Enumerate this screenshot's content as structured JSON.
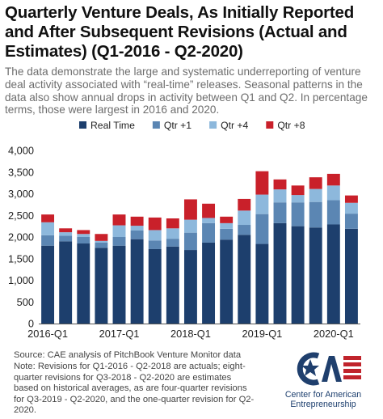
{
  "title": "Quarterly Venture Deals, As Initially Reported and After Subsequent Revisions (Actual and Estimates) (Q1-2016 - Q2-2020)",
  "subtitle": "The data demonstrate the large and systematic underreporting of venture deal activity associated with “real-time” releases. Seasonal patterns in the data also show annual drops in activity between Q1 and Q2. In percentage terms, those were largest in 2016 and 2020.",
  "source": "Source: CAE analysis of PitchBook Venture Monitor data",
  "note": "Note: Revisions for Q1-2016 - Q2-2018 are actuals; eight-quarter revisions for Q3-2018 - Q2-2020 are estimates based on historical averages, as are four-quarter revisions for Q3-2019 - Q2-2020, and the one-quarter revision for Q2-2020.",
  "logo": {
    "mark": "CAE",
    "line1": "Center for American",
    "line2": "Entrepreneurship",
    "colors": {
      "blue": "#1f3f6d",
      "red": "#c0242c"
    }
  },
  "chart_data": {
    "type": "bar",
    "stacked": true,
    "categories": [
      "Q1-2016",
      "Q2-2016",
      "Q3-2016",
      "Q4-2016",
      "Q1-2017",
      "Q2-2017",
      "Q3-2017",
      "Q4-2017",
      "Q1-2018",
      "Q2-2018",
      "Q3-2018",
      "Q4-2018",
      "Q1-2019",
      "Q2-2019",
      "Q3-2019",
      "Q4-2019",
      "Q1-2020",
      "Q2-2020"
    ],
    "tick_labels": [
      "2016-Q1",
      "2017-Q1",
      "2018-Q1",
      "2019-Q1",
      "2020-Q1"
    ],
    "series": [
      {
        "name": "Real Time",
        "color": "#1d3f6d",
        "values": [
          1800,
          1900,
          1850,
          1750,
          1800,
          1950,
          1720,
          1780,
          1700,
          1870,
          1940,
          2050,
          1840,
          2320,
          2250,
          2220,
          2290,
          2190
        ]
      },
      {
        "name": "Qtr +1",
        "color": "#5b86b3",
        "values": [
          240,
          130,
          150,
          120,
          200,
          200,
          200,
          180,
          400,
          450,
          250,
          230,
          690,
          480,
          550,
          590,
          560,
          350
        ]
      },
      {
        "name": "Qtr +4",
        "color": "#8db8dc",
        "values": [
          300,
          80,
          70,
          40,
          270,
          110,
          240,
          240,
          300,
          120,
          130,
          330,
          450,
          300,
          170,
          300,
          340,
          250
        ]
      },
      {
        "name": "Qtr +8",
        "color": "#c9202a",
        "values": [
          180,
          90,
          90,
          160,
          250,
          210,
          290,
          230,
          470,
          330,
          150,
          270,
          540,
          230,
          220,
          270,
          270,
          170
        ]
      }
    ],
    "ylim": [
      0,
      4000
    ],
    "yticks": [
      "0",
      "500",
      "1,000",
      "1,500",
      "2,000",
      "2,500",
      "3,000",
      "3,500",
      "4,000"
    ],
    "xlabel": "",
    "ylabel": "",
    "grid": false,
    "legend_position": "top"
  }
}
